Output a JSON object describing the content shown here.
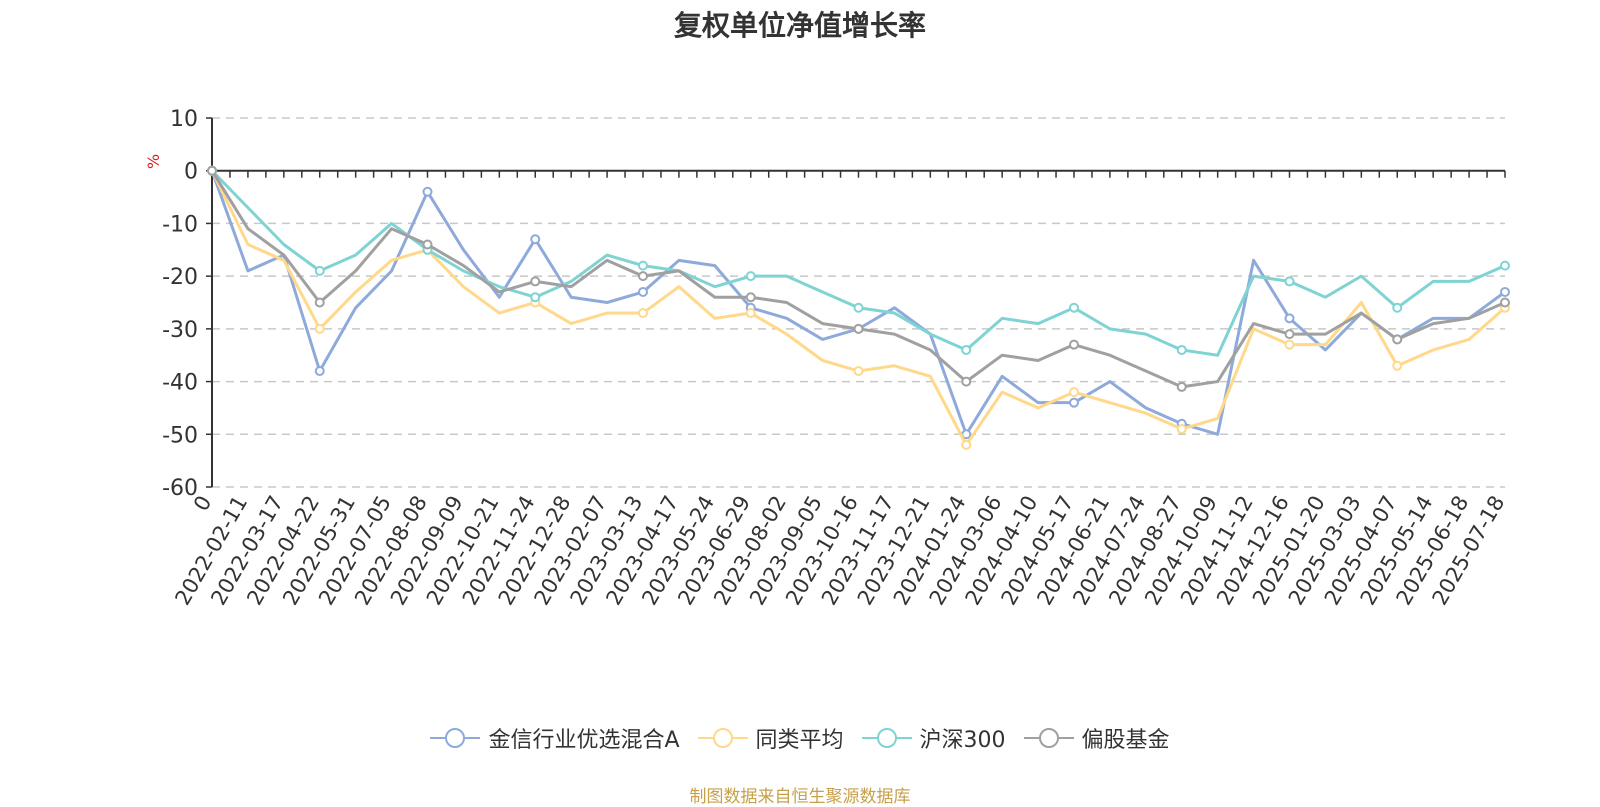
{
  "chart_data": {
    "type": "line",
    "title": "复权单位净值增长率",
    "ylabel": "%",
    "ylim": [
      -60,
      10
    ],
    "yticks": [
      10,
      0,
      -10,
      -20,
      -30,
      -40,
      -50,
      -60
    ],
    "grid": true,
    "legend_position": "bottom",
    "x_labels": [
      "0",
      "2022-02-11",
      "2022-03-17",
      "2022-04-22",
      "2022-05-31",
      "2022-07-05",
      "2022-08-08",
      "2022-09-09",
      "2022-10-21",
      "2022-11-24",
      "2022-12-28",
      "2023-02-07",
      "2023-03-13",
      "2023-04-17",
      "2023-05-24",
      "2023-06-29",
      "2023-08-02",
      "2023-09-05",
      "2023-10-16",
      "2023-11-17",
      "2023-12-21",
      "2024-01-24",
      "2024-03-06",
      "2024-04-10",
      "2024-05-17",
      "2024-06-21",
      "2024-07-24",
      "2024-08-27",
      "2024-10-09",
      "2024-11-12",
      "2024-12-16",
      "2025-01-20",
      "2025-03-03",
      "2025-04-07",
      "2025-05-14",
      "2025-06-18",
      "2025-07-18"
    ],
    "series": [
      {
        "name": "金信行业优选混合A",
        "color": "#8eaadb",
        "values": [
          0,
          -19,
          -16,
          -38,
          -26,
          -19,
          -4,
          -15,
          -24,
          -13,
          -24,
          -25,
          -23,
          -17,
          -18,
          -26,
          -28,
          -32,
          -30,
          -26,
          -31,
          -50,
          -39,
          -44,
          -44,
          -40,
          -45,
          -48,
          -50,
          -17,
          -28,
          -34,
          -27,
          -32,
          -28,
          -28,
          -23
        ]
      },
      {
        "name": "同类平均",
        "color": "#ffd88a",
        "values": [
          0,
          -14,
          -17,
          -30,
          -23,
          -17,
          -15,
          -22,
          -27,
          -25,
          -29,
          -27,
          -27,
          -22,
          -28,
          -27,
          -31,
          -36,
          -38,
          -37,
          -39,
          -52,
          -42,
          -45,
          -42,
          -44,
          -46,
          -49,
          -47,
          -30,
          -33,
          -33,
          -25,
          -37,
          -34,
          -32,
          -26
        ]
      },
      {
        "name": "沪深300",
        "color": "#7fd3d3",
        "values": [
          0,
          -7,
          -14,
          -19,
          -16,
          -10,
          -15,
          -19,
          -22,
          -24,
          -21,
          -16,
          -18,
          -19,
          -22,
          -20,
          -20,
          -23,
          -26,
          -27,
          -31,
          -34,
          -28,
          -29,
          -26,
          -30,
          -31,
          -34,
          -35,
          -20,
          -21,
          -24,
          -20,
          -26,
          -21,
          -21,
          -18
        ]
      },
      {
        "name": "偏股基金",
        "color": "#a0a0a0",
        "values": [
          0,
          -11,
          -16,
          -25,
          -19,
          -11,
          -14,
          -18,
          -23,
          -21,
          -22,
          -17,
          -20,
          -19,
          -24,
          -24,
          -25,
          -29,
          -30,
          -31,
          -34,
          -40,
          -35,
          -36,
          -33,
          -35,
          -38,
          -41,
          -40,
          -29,
          -31,
          -31,
          -27,
          -32,
          -29,
          -28,
          -25
        ]
      }
    ]
  },
  "source_note": "制图数据来自恒生聚源数据库"
}
